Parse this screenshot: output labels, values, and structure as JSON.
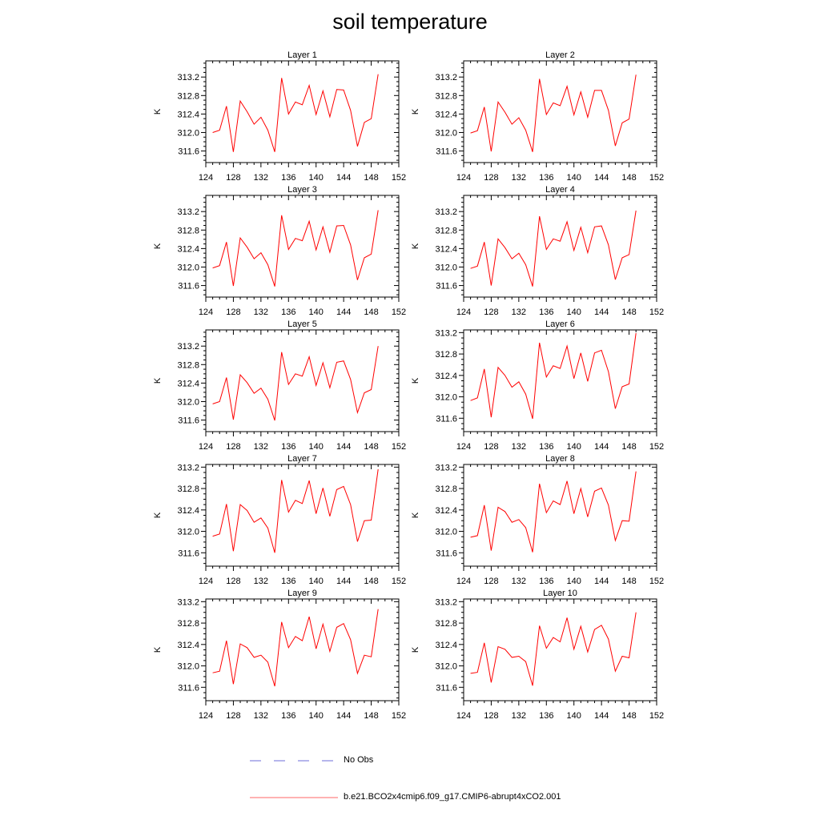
{
  "title": "soil temperature",
  "legend": [
    {
      "label": "No Obs",
      "color": "#6c6cd8",
      "style": "dashed"
    },
    {
      "label": "b.e21.BCO2x4cmip6.f09_g17.CMIP6-abrupt4xCO2.001",
      "color": "#ff0000",
      "style": "solid"
    }
  ],
  "chart_data": [
    {
      "type": "line",
      "title": "Layer 1",
      "ylabel": "K",
      "xlim": [
        124,
        152
      ],
      "ylim": [
        311.35,
        313.55
      ],
      "xticks": [
        124,
        128,
        132,
        136,
        140,
        144,
        148,
        152
      ],
      "yticks": [
        311.6,
        312.0,
        312.4,
        312.8,
        313.2
      ],
      "series": [
        {
          "name": "b.e21.BCO2x4cmip6.f09_g17.CMIP6-abrupt4xCO2.001",
          "color": "#ff0000",
          "x": [
            125,
            126,
            127,
            128,
            129,
            130,
            131,
            132,
            133,
            134,
            135,
            136,
            137,
            138,
            139,
            140,
            141,
            142,
            143,
            144,
            145,
            146,
            147,
            148,
            149
          ],
          "y": [
            312.0,
            312.05,
            312.57,
            311.58,
            312.68,
            312.45,
            312.18,
            312.33,
            312.05,
            311.58,
            313.18,
            312.4,
            312.66,
            312.6,
            313.02,
            312.39,
            312.9,
            312.34,
            312.93,
            312.92,
            312.48,
            311.7,
            312.22,
            312.3,
            313.26
          ]
        }
      ]
    },
    {
      "type": "line",
      "title": "Layer 2",
      "ylabel": "K",
      "xlim": [
        124,
        152
      ],
      "ylim": [
        311.35,
        313.55
      ],
      "xticks": [
        124,
        128,
        132,
        136,
        140,
        144,
        148,
        152
      ],
      "yticks": [
        311.6,
        312.0,
        312.4,
        312.8,
        313.2
      ],
      "series": [
        {
          "name": "b.e21.BCO2x4cmip6.f09_g17.CMIP6-abrupt4xCO2.001",
          "color": "#ff0000",
          "x": [
            125,
            126,
            127,
            128,
            129,
            130,
            131,
            132,
            133,
            134,
            135,
            136,
            137,
            138,
            139,
            140,
            141,
            142,
            143,
            144,
            145,
            146,
            147,
            148,
            149
          ],
          "y": [
            311.99,
            312.04,
            312.55,
            311.59,
            312.66,
            312.44,
            312.18,
            312.32,
            312.05,
            311.58,
            313.16,
            312.39,
            312.64,
            312.58,
            313.0,
            312.38,
            312.88,
            312.33,
            312.91,
            312.91,
            312.48,
            311.71,
            312.21,
            312.29,
            313.25
          ]
        }
      ]
    },
    {
      "type": "line",
      "title": "Layer 3",
      "ylabel": "K",
      "xlim": [
        124,
        152
      ],
      "ylim": [
        311.35,
        313.55
      ],
      "xticks": [
        124,
        128,
        132,
        136,
        140,
        144,
        148,
        152
      ],
      "yticks": [
        311.6,
        312.0,
        312.4,
        312.8,
        313.2
      ],
      "series": [
        {
          "name": "b.e21.BCO2x4cmip6.f09_g17.CMIP6-abrupt4xCO2.001",
          "color": "#ff0000",
          "x": [
            125,
            126,
            127,
            128,
            129,
            130,
            131,
            132,
            133,
            134,
            135,
            136,
            137,
            138,
            139,
            140,
            141,
            142,
            143,
            144,
            145,
            146,
            147,
            148,
            149
          ],
          "y": [
            311.98,
            312.03,
            312.54,
            311.59,
            312.63,
            312.43,
            312.18,
            312.31,
            312.05,
            311.58,
            313.12,
            312.38,
            312.62,
            312.57,
            312.99,
            312.37,
            312.87,
            312.32,
            312.89,
            312.9,
            312.48,
            311.72,
            312.2,
            312.28,
            313.23
          ]
        }
      ]
    },
    {
      "type": "line",
      "title": "Layer 4",
      "ylabel": "K",
      "xlim": [
        124,
        152
      ],
      "ylim": [
        311.35,
        313.55
      ],
      "xticks": [
        124,
        128,
        132,
        136,
        140,
        144,
        148,
        152
      ],
      "yticks": [
        311.6,
        312.0,
        312.4,
        312.8,
        313.2
      ],
      "series": [
        {
          "name": "b.e21.BCO2x4cmip6.f09_g17.CMIP6-abrupt4xCO2.001",
          "color": "#ff0000",
          "x": [
            125,
            126,
            127,
            128,
            129,
            130,
            131,
            132,
            133,
            134,
            135,
            136,
            137,
            138,
            139,
            140,
            141,
            142,
            143,
            144,
            145,
            146,
            147,
            148,
            149
          ],
          "y": [
            311.97,
            312.02,
            312.54,
            311.6,
            312.61,
            312.42,
            312.18,
            312.3,
            312.05,
            311.58,
            313.1,
            312.38,
            312.61,
            312.56,
            312.98,
            312.36,
            312.86,
            312.31,
            312.87,
            312.89,
            312.48,
            311.73,
            312.2,
            312.27,
            313.22
          ]
        }
      ]
    },
    {
      "type": "line",
      "title": "Layer 5",
      "ylabel": "K",
      "xlim": [
        124,
        152
      ],
      "ylim": [
        311.35,
        313.55
      ],
      "xticks": [
        124,
        128,
        132,
        136,
        140,
        144,
        148,
        152
      ],
      "yticks": [
        311.6,
        312.0,
        312.4,
        312.8,
        313.2
      ],
      "series": [
        {
          "name": "b.e21.BCO2x4cmip6.f09_g17.CMIP6-abrupt4xCO2.001",
          "color": "#ff0000",
          "x": [
            125,
            126,
            127,
            128,
            129,
            130,
            131,
            132,
            133,
            134,
            135,
            136,
            137,
            138,
            139,
            140,
            141,
            142,
            143,
            144,
            145,
            146,
            147,
            148,
            149
          ],
          "y": [
            311.95,
            312.0,
            312.52,
            311.61,
            312.58,
            312.41,
            312.18,
            312.29,
            312.05,
            311.59,
            313.07,
            312.37,
            312.6,
            312.55,
            312.97,
            312.35,
            312.84,
            312.3,
            312.85,
            312.88,
            312.48,
            311.76,
            312.19,
            312.26,
            313.2
          ]
        }
      ]
    },
    {
      "type": "line",
      "title": "Layer 6",
      "ylabel": "K",
      "xlim": [
        124,
        152
      ],
      "ylim": [
        311.35,
        313.25
      ],
      "xticks": [
        124,
        128,
        132,
        136,
        140,
        144,
        148,
        152
      ],
      "yticks": [
        311.6,
        312.0,
        312.4,
        312.8,
        313.2
      ],
      "series": [
        {
          "name": "b.e21.BCO2x4cmip6.f09_g17.CMIP6-abrupt4xCO2.001",
          "color": "#ff0000",
          "x": [
            125,
            126,
            127,
            128,
            129,
            130,
            131,
            132,
            133,
            134,
            135,
            136,
            137,
            138,
            139,
            140,
            141,
            142,
            143,
            144,
            145,
            146,
            147,
            148,
            149
          ],
          "y": [
            311.93,
            311.98,
            312.52,
            311.62,
            312.55,
            312.4,
            312.18,
            312.28,
            312.05,
            311.59,
            313.01,
            312.37,
            312.58,
            312.53,
            312.95,
            312.34,
            312.82,
            312.29,
            312.82,
            312.87,
            312.47,
            311.78,
            312.19,
            312.24,
            313.19
          ]
        }
      ]
    },
    {
      "type": "line",
      "title": "Layer 7",
      "ylabel": "K",
      "xlim": [
        124,
        152
      ],
      "ylim": [
        311.35,
        313.25
      ],
      "xticks": [
        124,
        128,
        132,
        136,
        140,
        144,
        148,
        152
      ],
      "yticks": [
        311.6,
        312.0,
        312.4,
        312.8,
        313.2
      ],
      "series": [
        {
          "name": "b.e21.BCO2x4cmip6.f09_g17.CMIP6-abrupt4xCO2.001",
          "color": "#ff0000",
          "x": [
            125,
            126,
            127,
            128,
            129,
            130,
            131,
            132,
            133,
            134,
            135,
            136,
            137,
            138,
            139,
            140,
            141,
            142,
            143,
            144,
            145,
            146,
            147,
            148,
            149
          ],
          "y": [
            311.91,
            311.95,
            312.51,
            311.63,
            312.5,
            312.39,
            312.17,
            312.25,
            312.06,
            311.6,
            312.96,
            312.36,
            312.58,
            312.52,
            312.95,
            312.33,
            312.81,
            312.28,
            312.78,
            312.84,
            312.5,
            311.81,
            312.2,
            312.21,
            313.16
          ]
        }
      ]
    },
    {
      "type": "line",
      "title": "Layer 8",
      "ylabel": "K",
      "xlim": [
        124,
        152
      ],
      "ylim": [
        311.35,
        313.25
      ],
      "xticks": [
        124,
        128,
        132,
        136,
        140,
        144,
        148,
        152
      ],
      "yticks": [
        311.6,
        312.0,
        312.4,
        312.8,
        313.2
      ],
      "series": [
        {
          "name": "b.e21.BCO2x4cmip6.f09_g17.CMIP6-abrupt4xCO2.001",
          "color": "#ff0000",
          "x": [
            125,
            126,
            127,
            128,
            129,
            130,
            131,
            132,
            133,
            134,
            135,
            136,
            137,
            138,
            139,
            140,
            141,
            142,
            143,
            144,
            145,
            146,
            147,
            148,
            149
          ],
          "y": [
            311.89,
            311.92,
            312.49,
            311.64,
            312.45,
            312.37,
            312.17,
            312.22,
            312.07,
            311.61,
            312.89,
            312.35,
            312.57,
            312.5,
            312.94,
            312.33,
            312.8,
            312.27,
            312.75,
            312.81,
            312.49,
            311.83,
            312.2,
            312.19,
            313.12
          ]
        }
      ]
    },
    {
      "type": "line",
      "title": "Layer 9",
      "ylabel": "K",
      "xlim": [
        124,
        152
      ],
      "ylim": [
        311.35,
        313.25
      ],
      "xticks": [
        124,
        128,
        132,
        136,
        140,
        144,
        148,
        152
      ],
      "yticks": [
        311.6,
        312.0,
        312.4,
        312.8,
        313.2
      ],
      "series": [
        {
          "name": "b.e21.BCO2x4cmip6.f09_g17.CMIP6-abrupt4xCO2.001",
          "color": "#ff0000",
          "x": [
            125,
            126,
            127,
            128,
            129,
            130,
            131,
            132,
            133,
            134,
            135,
            136,
            137,
            138,
            139,
            140,
            141,
            142,
            143,
            144,
            145,
            146,
            147,
            148,
            149
          ],
          "y": [
            311.87,
            311.9,
            312.47,
            311.66,
            312.41,
            312.34,
            312.16,
            312.2,
            312.07,
            311.62,
            312.82,
            312.34,
            312.55,
            312.47,
            312.92,
            312.32,
            312.78,
            312.27,
            312.72,
            312.79,
            312.49,
            311.86,
            312.2,
            312.17,
            313.06
          ]
        }
      ]
    },
    {
      "type": "line",
      "title": "Layer 10",
      "ylabel": "K",
      "xlim": [
        124,
        152
      ],
      "ylim": [
        311.35,
        313.25
      ],
      "xticks": [
        124,
        128,
        132,
        136,
        140,
        144,
        148,
        152
      ],
      "yticks": [
        311.6,
        312.0,
        312.4,
        312.8,
        313.2
      ],
      "series": [
        {
          "name": "b.e21.BCO2x4cmip6.f09_g17.CMIP6-abrupt4xCO2.001",
          "color": "#ff0000",
          "x": [
            125,
            126,
            127,
            128,
            129,
            130,
            131,
            132,
            133,
            134,
            135,
            136,
            137,
            138,
            139,
            140,
            141,
            142,
            143,
            144,
            145,
            146,
            147,
            148,
            149
          ],
          "y": [
            311.86,
            311.88,
            312.43,
            311.69,
            312.36,
            312.31,
            312.16,
            312.18,
            312.08,
            311.63,
            312.75,
            312.33,
            312.53,
            312.45,
            312.9,
            312.31,
            312.74,
            312.26,
            312.68,
            312.76,
            312.5,
            311.9,
            312.18,
            312.15,
            313.0
          ]
        }
      ]
    }
  ]
}
